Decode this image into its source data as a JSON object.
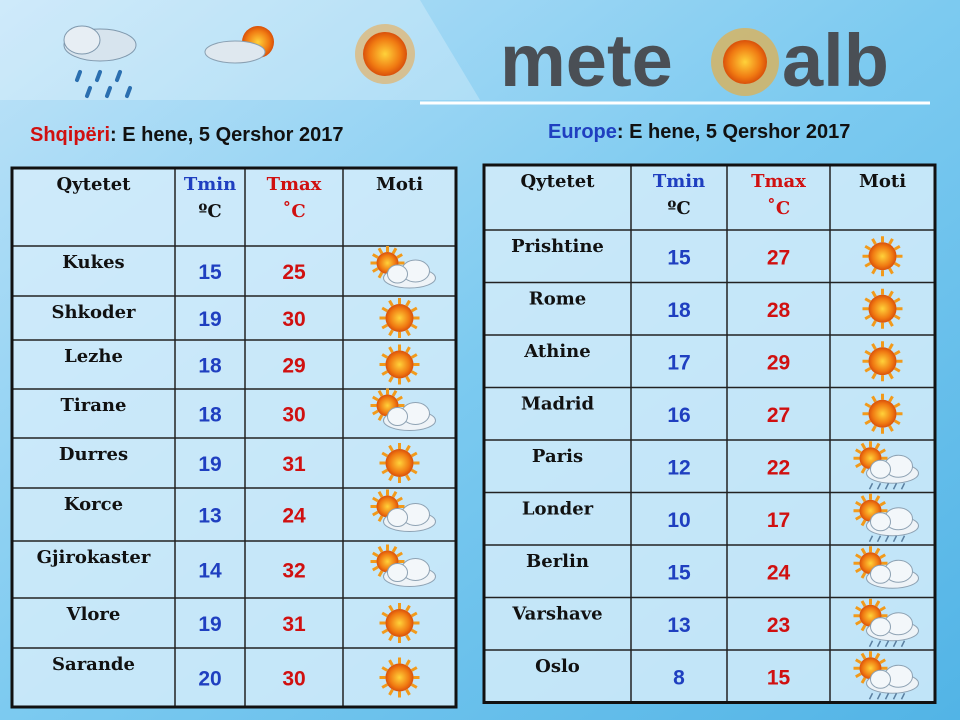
{
  "logo": {
    "left": "mete",
    "right": "alb"
  },
  "albania": {
    "region": "Shqipëri",
    "date": ": E hene, 5 Qershor 2017",
    "header": {
      "city": "Qytetet",
      "tmin": "Tmin",
      "tmin_unit": "ºC",
      "tmax": "Tmax",
      "tmax_unit": "˚C",
      "weather": "Moti"
    },
    "rows": [
      {
        "city": "Kukes",
        "tmin": 15,
        "tmax": 25,
        "icon": "sun-cloud"
      },
      {
        "city": "Shkoder",
        "tmin": 19,
        "tmax": 30,
        "icon": "sun"
      },
      {
        "city": "Lezhe",
        "tmin": 18,
        "tmax": 29,
        "icon": "sun"
      },
      {
        "city": "Tirane",
        "tmin": 18,
        "tmax": 30,
        "icon": "sun-cloud"
      },
      {
        "city": "Durres",
        "tmin": 19,
        "tmax": 31,
        "icon": "sun"
      },
      {
        "city": "Korce",
        "tmin": 13,
        "tmax": 24,
        "icon": "sun-cloud"
      },
      {
        "city": "Gjirokaster",
        "tmin": 14,
        "tmax": 32,
        "icon": "sun-cloud"
      },
      {
        "city": "Vlore",
        "tmin": 19,
        "tmax": 31,
        "icon": "sun"
      },
      {
        "city": "Sarande",
        "tmin": 20,
        "tmax": 30,
        "icon": "sun"
      }
    ]
  },
  "europe": {
    "region": "Europe",
    "date": ": E hene, 5 Qershor 2017",
    "header": {
      "city": "Qytetet",
      "tmin": "Tmin",
      "tmin_unit": "ºC",
      "tmax": "Tmax",
      "tmax_unit": "˚C",
      "weather": "Moti"
    },
    "rows": [
      {
        "city": "Prishtine",
        "tmin": 15,
        "tmax": 27,
        "icon": "sun"
      },
      {
        "city": "Rome",
        "tmin": 18,
        "tmax": 28,
        "icon": "sun"
      },
      {
        "city": "Athine",
        "tmin": 17,
        "tmax": 29,
        "icon": "sun"
      },
      {
        "city": "Madrid",
        "tmin": 16,
        "tmax": 27,
        "icon": "sun"
      },
      {
        "city": "Paris",
        "tmin": 12,
        "tmax": 22,
        "icon": "sun-cloud-rain"
      },
      {
        "city": "Londer",
        "tmin": 10,
        "tmax": 17,
        "icon": "sun-cloud-rain"
      },
      {
        "city": "Berlin",
        "tmin": 15,
        "tmax": 24,
        "icon": "sun-cloud"
      },
      {
        "city": "Varshave",
        "tmin": 13,
        "tmax": 23,
        "icon": "sun-cloud-rain"
      },
      {
        "city": "Oslo",
        "tmin": 8,
        "tmax": 15,
        "icon": "sun-cloud-rain"
      }
    ]
  }
}
